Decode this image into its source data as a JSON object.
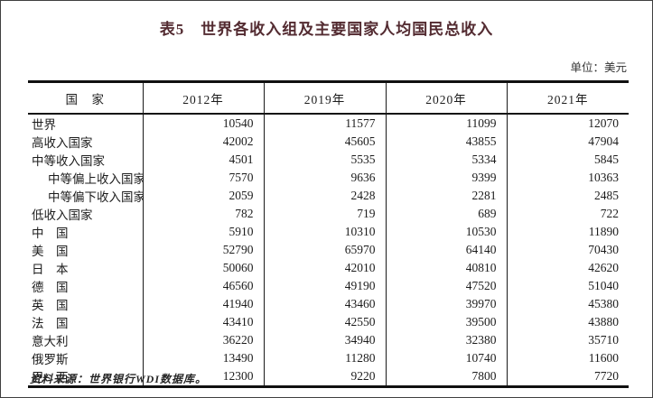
{
  "page": {
    "title": "表5　世界各收入组及主要国家人均国民总收入",
    "unit_label": "单位：美元",
    "source_note": "资料来源：世界银行WDI数据库。"
  },
  "colors": {
    "title_color": "#532b31",
    "body_text": "#1c1c1c",
    "table_border": "#101010"
  },
  "chart_data": {
    "type": "table",
    "title": "表5　世界各收入组及主要国家人均国民总收入",
    "unit": "美元",
    "columns": [
      "国　家",
      "2012年",
      "2019年",
      "2020年",
      "2021年"
    ],
    "rows": [
      {
        "label": "世界",
        "indent": false,
        "values": [
          10540,
          11577,
          11099,
          12070
        ]
      },
      {
        "label": "高收入国家",
        "indent": false,
        "values": [
          42002,
          45605,
          43855,
          47904
        ]
      },
      {
        "label": "中等收入国家",
        "indent": false,
        "values": [
          4501,
          5535,
          5334,
          5845
        ]
      },
      {
        "label": "中等偏上收入国家",
        "indent": true,
        "values": [
          7570,
          9636,
          9399,
          10363
        ]
      },
      {
        "label": "中等偏下收入国家",
        "indent": true,
        "values": [
          2059,
          2428,
          2281,
          2485
        ]
      },
      {
        "label": "低收入国家",
        "indent": false,
        "values": [
          782,
          719,
          689,
          722
        ]
      },
      {
        "label": "中　国",
        "indent": false,
        "values": [
          5910,
          10310,
          10530,
          11890
        ]
      },
      {
        "label": "美　国",
        "indent": false,
        "values": [
          52790,
          65970,
          64140,
          70430
        ]
      },
      {
        "label": "日　本",
        "indent": false,
        "values": [
          50060,
          42010,
          40810,
          42620
        ]
      },
      {
        "label": "德　国",
        "indent": false,
        "values": [
          46560,
          49190,
          47520,
          51040
        ]
      },
      {
        "label": "英　国",
        "indent": false,
        "values": [
          41940,
          43460,
          39970,
          45380
        ]
      },
      {
        "label": "法　国",
        "indent": false,
        "values": [
          43410,
          42550,
          39500,
          43880
        ]
      },
      {
        "label": "意大利",
        "indent": false,
        "values": [
          36220,
          34940,
          32380,
          35710
        ]
      },
      {
        "label": "俄罗斯",
        "indent": false,
        "values": [
          13490,
          11280,
          10740,
          11600
        ]
      },
      {
        "label": "巴　西",
        "indent": false,
        "values": [
          12300,
          9220,
          7800,
          7720
        ]
      }
    ],
    "source": "资料来源：世界银行WDI数据库。"
  }
}
